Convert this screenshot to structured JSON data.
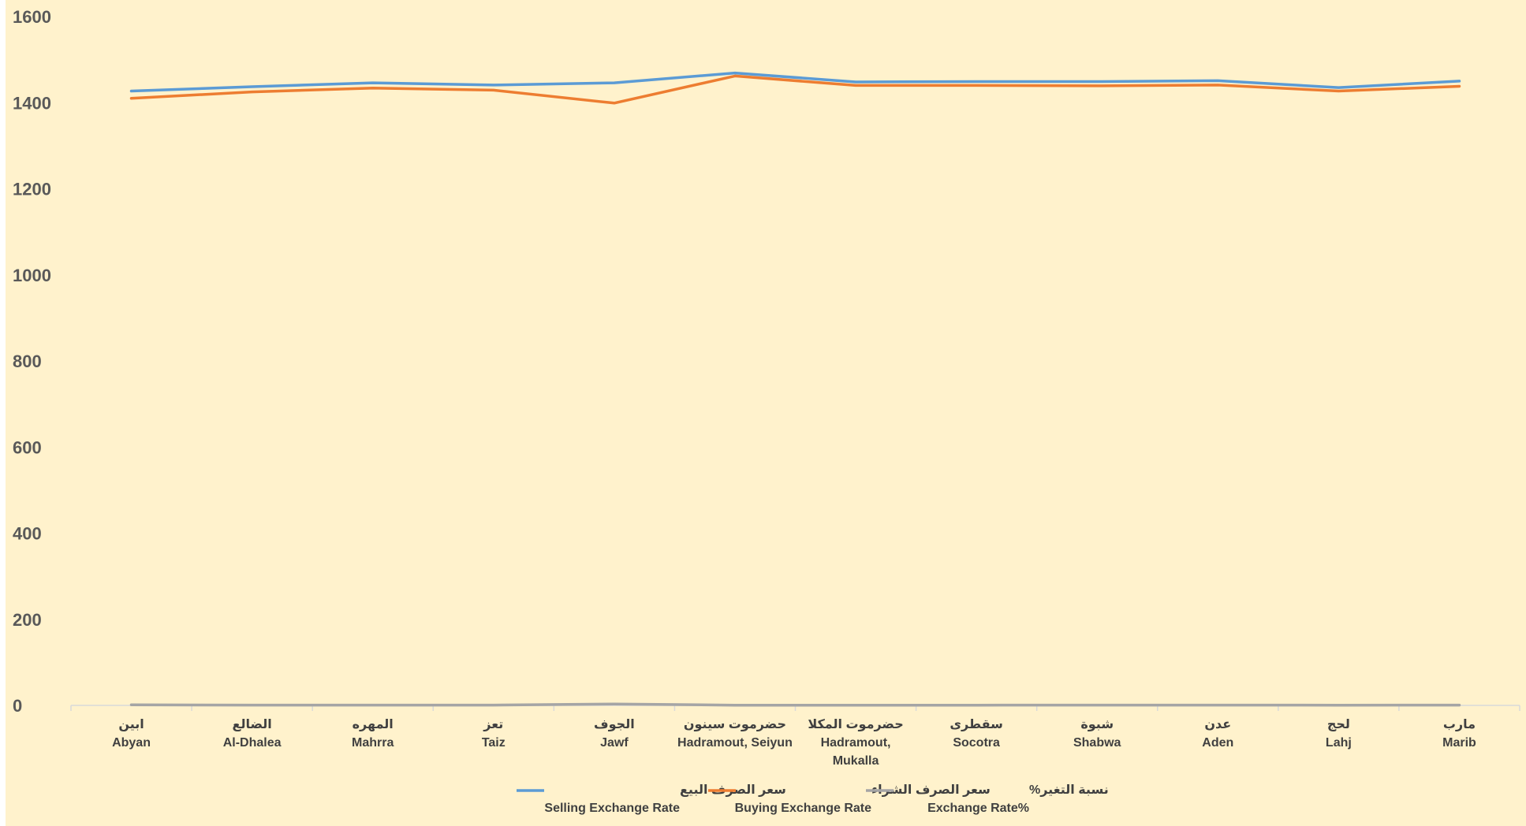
{
  "chart_data": {
    "type": "line",
    "ylim": [
      0,
      1600
    ],
    "yticks": [
      0,
      200,
      400,
      600,
      800,
      1000,
      1200,
      1400,
      1600
    ],
    "grid": false,
    "legend_position": "bottom",
    "categories": [
      {
        "ar": "ابين",
        "en": "Abyan"
      },
      {
        "ar": "الضالع",
        "en": "Al-Dhalea"
      },
      {
        "ar": "المهره",
        "en": "Mahrra"
      },
      {
        "ar": "تعز",
        "en": "Taiz"
      },
      {
        "ar": "الجوف",
        "en": "Jawf"
      },
      {
        "ar": "حضرموت سينون",
        "en": "Hadramout, Seiyun"
      },
      {
        "ar": "حضرموت المكلا",
        "en": "Hadramout, Mukalla"
      },
      {
        "ar": "سقطرى",
        "en": "Socotra"
      },
      {
        "ar": "شبوة",
        "en": "Shabwa"
      },
      {
        "ar": "عدن",
        "en": "Aden"
      },
      {
        "ar": "لحج",
        "en": "Lahj"
      },
      {
        "ar": "مارب",
        "en": "Marib"
      }
    ],
    "series": [
      {
        "name_ar": "سعر الصرف البيع",
        "name_en": "Selling Exchange Rate",
        "color": "#5b9bd5",
        "values": [
          1427,
          1437,
          1446,
          1441,
          1446,
          1469,
          1448,
          1449,
          1449,
          1451,
          1435,
          1450
        ]
      },
      {
        "name_ar": "سعر الصرف الشراء",
        "name_en": "Buying Exchange Rate",
        "color": "#ed7d31",
        "values": [
          1410,
          1425,
          1434,
          1429,
          1399,
          1462,
          1440,
          1440,
          1439,
          1441,
          1427,
          1438
        ]
      },
      {
        "name_ar": "نسبة التغير%",
        "name_en": "Exchange Rate%",
        "color": "#a5a5a5",
        "values": [
          1.2,
          0.8,
          0.8,
          0.8,
          3.3,
          0.5,
          0.6,
          0.6,
          0.7,
          0.7,
          0.6,
          0.8
        ]
      }
    ]
  }
}
